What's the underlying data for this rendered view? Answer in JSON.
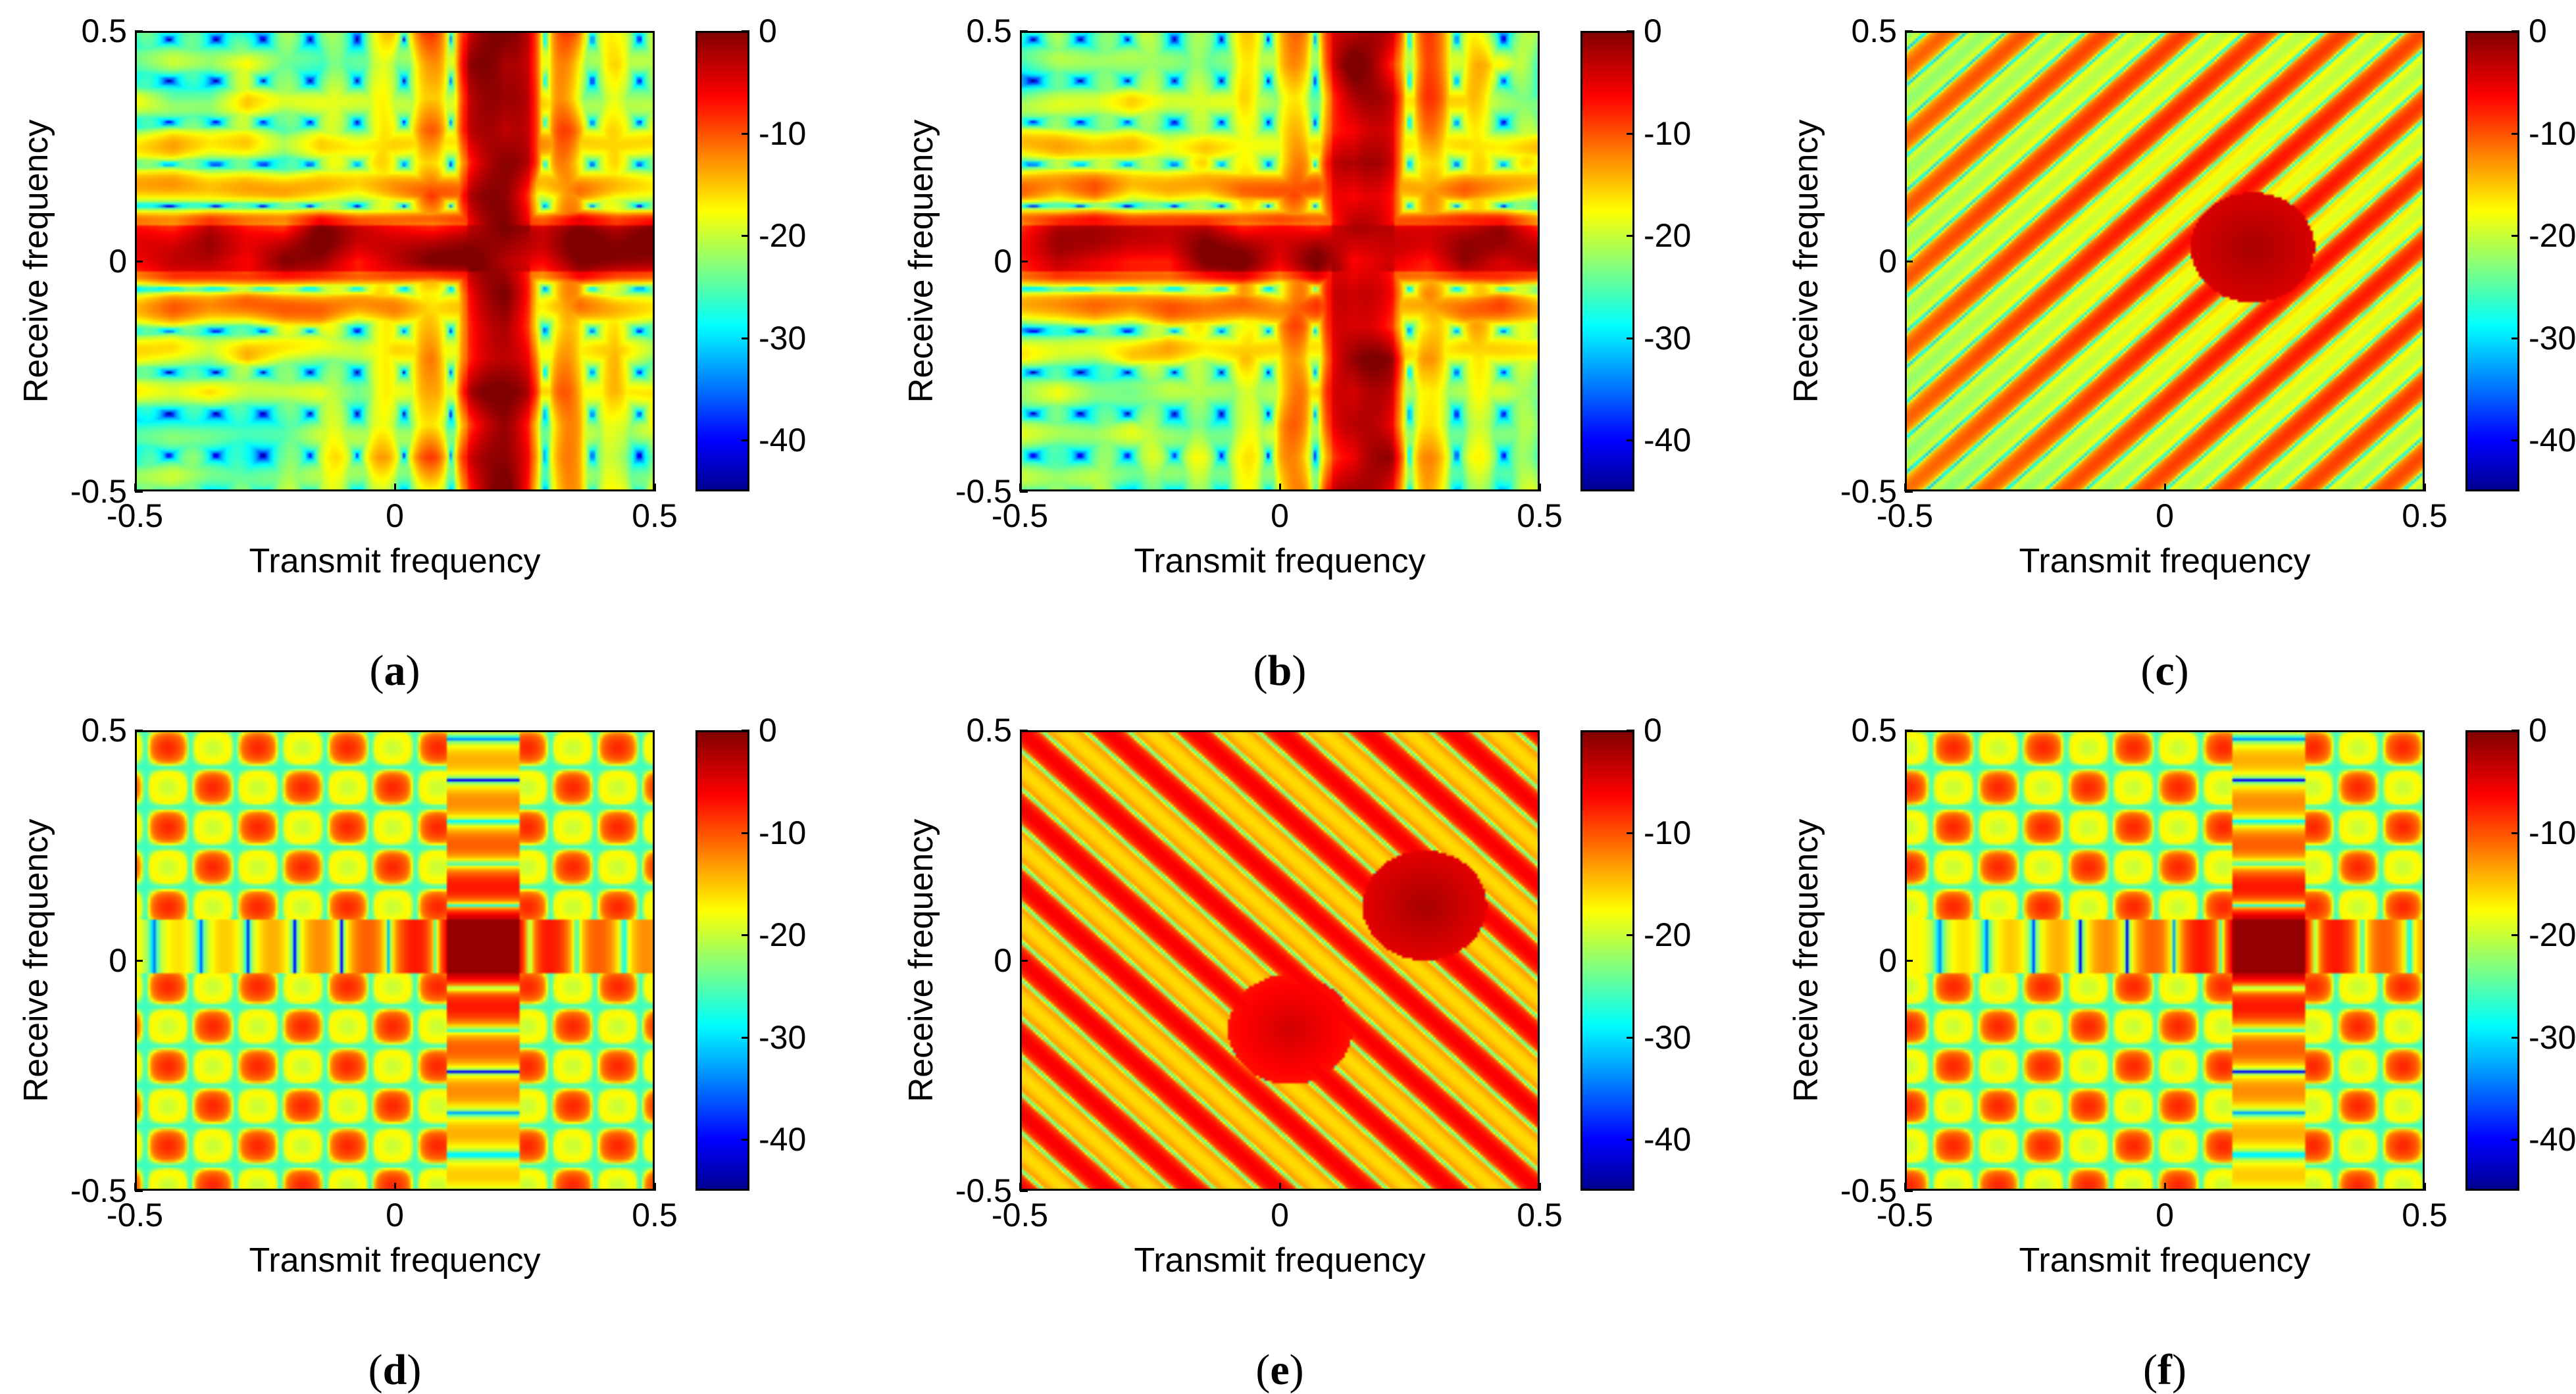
{
  "figure": {
    "colorscale": [
      "#00008f",
      "#0000ff",
      "#00ffff",
      "#ffff00",
      "#ff0000",
      "#800000"
    ],
    "colorbar_ticks": [
      0,
      -10,
      -20,
      -30,
      -40
    ],
    "colorbar_range": [
      -45,
      0
    ],
    "axis_ticks": [
      -0.5,
      0,
      0.5
    ],
    "axis_tick_labels": [
      "-0.5",
      "0",
      "0.5"
    ]
  },
  "chart_data": [
    {
      "type": "heatmap",
      "id": "a",
      "caption": "a",
      "xlabel": "Transmit frequency",
      "ylabel": "Receive frequency",
      "xlim": [
        -0.5,
        0.5
      ],
      "ylim": [
        -0.5,
        0.5
      ],
      "clim": [
        -45,
        0
      ],
      "peak": [
        0.2,
        0.03
      ],
      "pattern": "cross",
      "background": "random",
      "x_tick_labels": [
        "-0.5",
        "0",
        "0.5"
      ],
      "y_tick_labels": [
        "-0.5",
        "0",
        "0.5"
      ],
      "colorbar_labels": [
        "0",
        "-10",
        "-20",
        "-30",
        "-40"
      ]
    },
    {
      "type": "heatmap",
      "id": "b",
      "caption": "b",
      "xlabel": "Transmit frequency",
      "ylabel": "Receive frequency",
      "xlim": [
        -0.5,
        0.5
      ],
      "ylim": [
        -0.5,
        0.5
      ],
      "clim": [
        -45,
        0
      ],
      "peak": [
        0.16,
        0.03
      ],
      "pattern": "cross",
      "background": "random",
      "x_tick_labels": [
        "-0.5",
        "0",
        "0.5"
      ],
      "y_tick_labels": [
        "-0.5",
        "0",
        "0.5"
      ],
      "colorbar_labels": [
        "0",
        "-10",
        "-20",
        "-30",
        "-40"
      ]
    },
    {
      "type": "heatmap",
      "id": "c",
      "caption": "c",
      "xlabel": "Transmit frequency",
      "ylabel": "Receive frequency",
      "xlim": [
        -0.5,
        0.5
      ],
      "ylim": [
        -0.5,
        0.5
      ],
      "clim": [
        -45,
        0
      ],
      "peak": [
        0.17,
        0.03
      ],
      "pattern": "diagonal-positive",
      "background": "stripes",
      "x_tick_labels": [
        "-0.5",
        "0",
        "0.5"
      ],
      "y_tick_labels": [
        "-0.5",
        "0",
        "0.5"
      ],
      "colorbar_labels": [
        "0",
        "-10",
        "-20",
        "-30",
        "-40"
      ]
    },
    {
      "type": "heatmap",
      "id": "d",
      "caption": "d",
      "xlabel": "Transmit frequency",
      "ylabel": "Receive frequency",
      "xlim": [
        -0.5,
        0.5
      ],
      "ylim": [
        -0.5,
        0.5
      ],
      "clim": [
        -45,
        0
      ],
      "peak": [
        0.17,
        0.03
      ],
      "pattern": "cross",
      "background": "grid",
      "x_tick_labels": [
        "-0.5",
        "0",
        "0.5"
      ],
      "y_tick_labels": [
        "-0.5",
        "0",
        "0.5"
      ],
      "colorbar_labels": [
        "0",
        "-10",
        "-20",
        "-30",
        "-40"
      ]
    },
    {
      "type": "heatmap",
      "id": "e",
      "caption": "e",
      "xlabel": "Transmit frequency",
      "ylabel": "Receive frequency",
      "xlim": [
        -0.5,
        0.5
      ],
      "ylim": [
        -0.5,
        0.5
      ],
      "clim": [
        -45,
        0
      ],
      "peak": [
        0.28,
        0.12
      ],
      "secondary_peak": [
        0.02,
        -0.15
      ],
      "pattern": "diagonal-negative",
      "background": "stripes",
      "x_tick_labels": [
        "-0.5",
        "0",
        "0.5"
      ],
      "y_tick_labels": [
        "-0.5",
        "0",
        "0.5"
      ],
      "colorbar_labels": [
        "0",
        "-10",
        "-20",
        "-30",
        "-40"
      ]
    },
    {
      "type": "heatmap",
      "id": "f",
      "caption": "f",
      "xlabel": "Transmit frequency",
      "ylabel": "Receive frequency",
      "xlim": [
        -0.5,
        0.5
      ],
      "ylim": [
        -0.5,
        0.5
      ],
      "clim": [
        -45,
        0
      ],
      "peak": [
        0.2,
        0.03
      ],
      "pattern": "cross",
      "background": "grid",
      "x_tick_labels": [
        "-0.5",
        "0",
        "0.5"
      ],
      "y_tick_labels": [
        "-0.5",
        "0",
        "0.5"
      ],
      "colorbar_labels": [
        "0",
        "-10",
        "-20",
        "-30",
        "-40"
      ]
    }
  ]
}
